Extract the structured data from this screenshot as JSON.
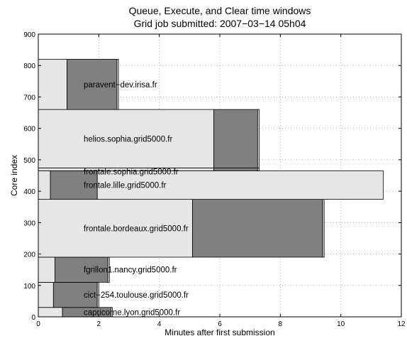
{
  "chart_data": {
    "type": "bar",
    "orientation": "horizontal-gantt",
    "title": "Queue, Execute, and Clear time windows",
    "subtitle": "Grid job submitted: 2007−03−14 05h04",
    "xlabel": "Minutes after first submission",
    "ylabel": "Core index",
    "xlim": [
      0,
      12
    ],
    "ylim": [
      0,
      900
    ],
    "xticks": [
      0,
      2,
      4,
      6,
      8,
      10,
      12
    ],
    "yticks": [
      0,
      100,
      200,
      300,
      400,
      500,
      600,
      700,
      800,
      900
    ],
    "grid": true,
    "colors": {
      "queue": "#e6e6e6",
      "execute": "#808080",
      "clear": "#e6e6e6",
      "edge": "#000000"
    },
    "hosts": [
      {
        "label": "capricorne.lyon.grid5000.fr",
        "core_start": 0,
        "core_end": 30,
        "queue_end": 0.8,
        "execute_end": 2.4,
        "clear_end": 2.45
      },
      {
        "label": "cict−254.toulouse.grid5000.fr",
        "core_start": 30,
        "core_end": 110,
        "queue_end": 0.5,
        "execute_end": 1.95,
        "clear_end": 2.0
      },
      {
        "label": "fgrillon1.nancy.grid5000.fr",
        "core_start": 110,
        "core_end": 190,
        "queue_end": 0.55,
        "execute_end": 2.3,
        "clear_end": 2.35
      },
      {
        "label": "frontale.bordeaux.grid5000.fr",
        "core_start": 190,
        "core_end": 374,
        "queue_end": 5.1,
        "execute_end": 9.4,
        "clear_end": 9.45
      },
      {
        "label": "frontale.lille.grid5000.fr",
        "core_start": 374,
        "core_end": 465,
        "queue_end": 0.4,
        "execute_end": 1.95,
        "clear_end": 11.4
      },
      {
        "label": "frontale.sophia.grid5000.fr",
        "core_start": 465,
        "core_end": 474,
        "queue_end": 5.8,
        "execute_end": 7.25,
        "clear_end": 7.3
      },
      {
        "label": "helios.sophia.grid5000.fr",
        "core_start": 474,
        "core_end": 660,
        "queue_end": 5.8,
        "execute_end": 7.25,
        "clear_end": 7.3
      },
      {
        "label": "paravent−dev.irisa.fr",
        "core_start": 660,
        "core_end": 820,
        "queue_end": 0.95,
        "execute_end": 2.6,
        "clear_end": 2.65
      }
    ]
  }
}
